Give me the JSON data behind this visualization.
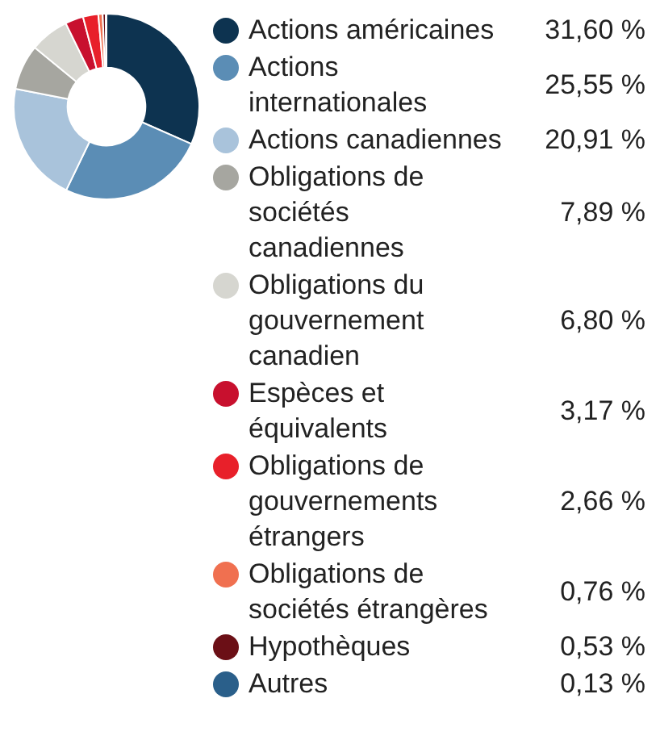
{
  "chart_data": {
    "type": "donut",
    "categories": [
      "Actions américaines",
      "Actions internationales",
      "Actions canadiennes",
      "Obligations de sociétés canadiennes",
      "Obligations du gouvernement canadien",
      "Espèces et équivalents",
      "Obligations de gouvernements étrangers",
      "Obligations de sociétés étrangères",
      "Hypothèques",
      "Autres"
    ],
    "values": [
      31.6,
      25.55,
      20.91,
      7.89,
      6.8,
      3.17,
      2.66,
      0.76,
      0.53,
      0.13
    ],
    "value_labels": [
      "31,60 %",
      "25,55 %",
      "20,91 %",
      "7,89 %",
      "6,80 %",
      "3,17 %",
      "2,66 %",
      "0,76 %",
      "0,53 %",
      "0,13 %"
    ],
    "colors": [
      "#0d3350",
      "#5b8db5",
      "#a9c3db",
      "#a6a6a0",
      "#d6d6d0",
      "#c8102e",
      "#e8202a",
      "#f07050",
      "#6b0f16",
      "#2a5f8a"
    ],
    "legend": "right"
  }
}
